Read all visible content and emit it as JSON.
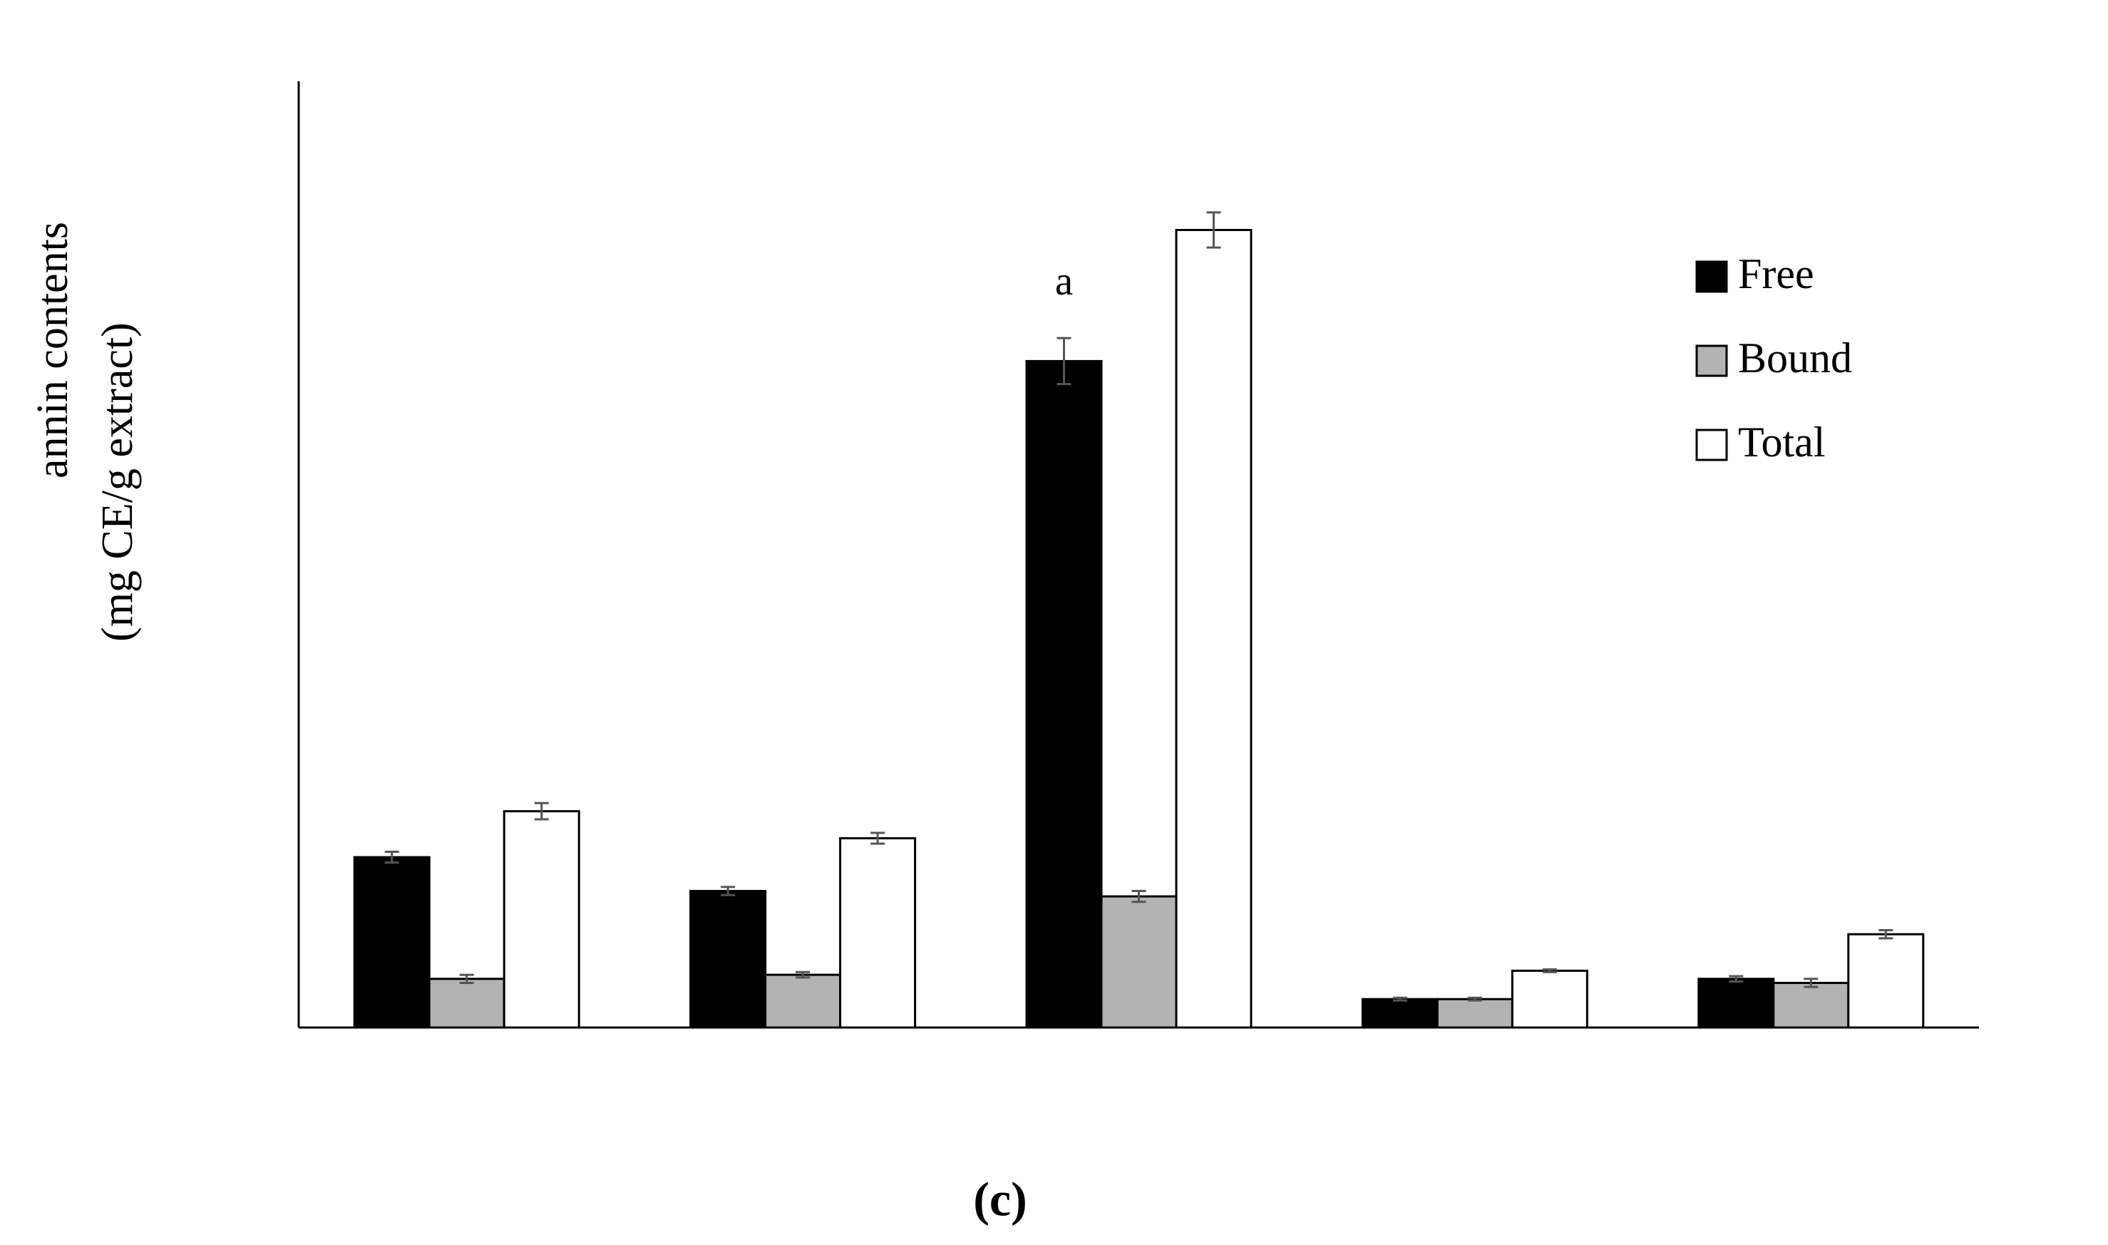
{
  "chart_data": {
    "type": "bar",
    "y_label_lines": [
      "annin contents",
      "(mg CE/g  extract)"
    ],
    "caption": "(c)",
    "annotations": [
      {
        "text": "a",
        "category": 2,
        "series": 0
      }
    ],
    "categories": [
      null,
      null,
      null,
      null,
      null
    ],
    "series": [
      {
        "name": "Free",
        "color": "#000000",
        "values": [
          12.6,
          10.1,
          49.3,
          2.1,
          3.6
        ],
        "errors": [
          0.4,
          0.3,
          1.7,
          0.1,
          0.2
        ]
      },
      {
        "name": "Bound",
        "color": "#b3b3b3",
        "values": [
          3.6,
          3.9,
          9.7,
          2.1,
          3.3
        ],
        "errors": [
          0.3,
          0.2,
          0.4,
          0.1,
          0.3
        ]
      },
      {
        "name": "Total",
        "color": "#ffffff",
        "values": [
          16.0,
          14.0,
          59.0,
          4.2,
          6.9
        ],
        "errors": [
          0.6,
          0.4,
          1.3,
          0.1,
          0.3
        ]
      }
    ],
    "ylim": [
      0,
      70
    ],
    "legend": "upper right"
  }
}
